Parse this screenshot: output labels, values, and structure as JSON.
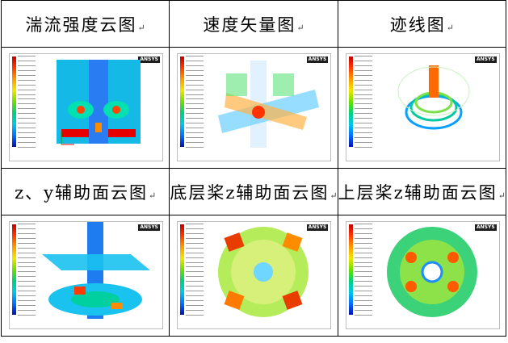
{
  "headers": [
    "湍流强度云图",
    "速度矢量图",
    "迹线图",
    "z、y辅助面云图",
    "底层桨z辅助面云图",
    "上层桨z辅助面云图"
  ],
  "paragraph_mark": "↵",
  "software_badge": "ANSYS",
  "colors": {
    "grid_border": "#000000",
    "badge_bg": "#1d1d1d",
    "colormap": [
      "#c00000",
      "#ff9b00",
      "#f2e600",
      "#00d27a",
      "#0070ff",
      "#0010b0"
    ]
  }
}
